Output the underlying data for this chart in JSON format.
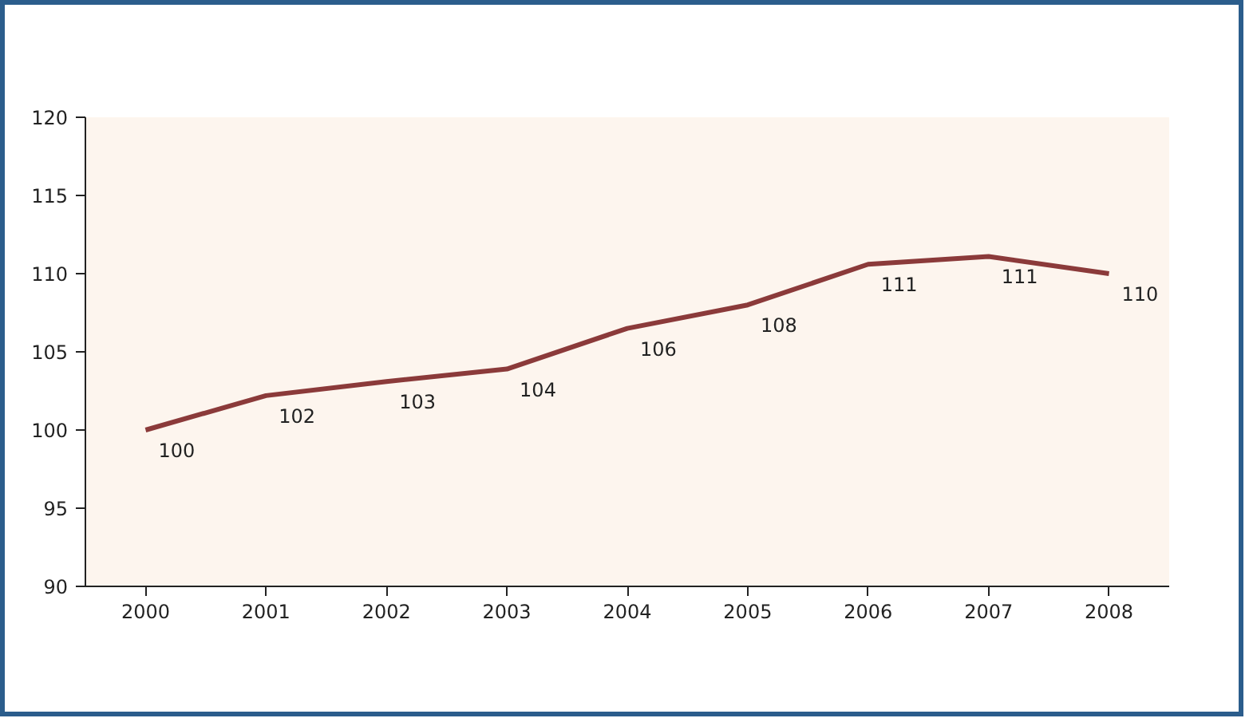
{
  "chart_data": {
    "type": "line",
    "categories": [
      "2000",
      "2001",
      "2002",
      "2003",
      "2004",
      "2005",
      "2006",
      "2007",
      "2008"
    ],
    "series": [
      {
        "color": "#8b3a3a",
        "values": [
          100,
          102.2,
          103.1,
          103.9,
          106.5,
          108,
          110.6,
          111.1,
          110
        ],
        "value_labels": [
          "100",
          "102",
          "103",
          "104",
          "106",
          "108",
          "111",
          "111",
          "110"
        ]
      }
    ],
    "ylim": [
      90,
      120
    ],
    "yticks": [
      90,
      95,
      100,
      105,
      110,
      115,
      120
    ],
    "line_style": "solid"
  }
}
